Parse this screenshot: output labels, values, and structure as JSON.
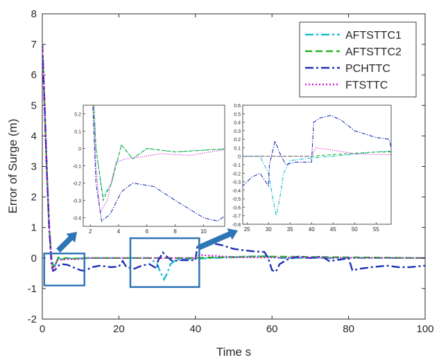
{
  "chart_data": {
    "type": "line",
    "xlabel": "Time s",
    "ylabel": "Error of Surge (m)",
    "xlim": [
      0,
      100
    ],
    "ylim": [
      -2,
      8
    ],
    "xticks": [
      "0",
      "20",
      "40",
      "60",
      "80",
      "100"
    ],
    "yticks": [
      "-2",
      "-1",
      "0",
      "1",
      "2",
      "3",
      "4",
      "5",
      "6",
      "7",
      "8"
    ],
    "legend_position": "top-right",
    "series": [
      {
        "name": "AFTSTTC1",
        "color": "#17becf",
        "dash": "dashdot",
        "x": [
          0,
          0.6,
          1.2,
          1.8,
          2.4,
          2.9,
          3.5,
          4.2,
          5,
          6,
          8,
          12,
          20,
          25,
          28,
          30,
          31,
          31.8,
          32.6,
          33.5,
          35,
          40,
          45,
          55,
          58,
          62,
          70,
          100
        ],
        "y": [
          7.0,
          5.0,
          2.8,
          1.0,
          0.0,
          -0.28,
          -0.2,
          0.02,
          -0.06,
          0.0,
          -0.02,
          0.0,
          0.0,
          0.0,
          0.0,
          -0.2,
          -0.5,
          -0.7,
          -0.5,
          -0.2,
          -0.05,
          -0.02,
          0.0,
          0.05,
          0.06,
          0.0,
          0.0,
          0.0
        ]
      },
      {
        "name": "AFTSTTC2",
        "color": "#22b322",
        "dash": "dashed",
        "x": [
          0,
          0.6,
          1.2,
          1.8,
          2.4,
          2.9,
          3.5,
          4.2,
          5,
          6,
          8,
          12,
          20,
          40,
          45,
          55,
          58,
          100
        ],
        "y": [
          7.0,
          5.0,
          2.8,
          1.0,
          0.0,
          -0.3,
          -0.2,
          0.02,
          -0.06,
          0.0,
          -0.02,
          0.0,
          0.0,
          0.0,
          0.02,
          0.05,
          0.05,
          0.0
        ]
      },
      {
        "name": "PCHTTC",
        "color": "#1c2fb5",
        "dash": "dashdot",
        "x": [
          0,
          0.6,
          1.2,
          1.8,
          2.4,
          2.8,
          3.4,
          4.2,
          5,
          6.5,
          8,
          10,
          11,
          13,
          15,
          18,
          20,
          21,
          22,
          24,
          26,
          28,
          30,
          30.2,
          31.5,
          32.5,
          34,
          36,
          40,
          40.5,
          42,
          44.5,
          47,
          50,
          55,
          58,
          59,
          60,
          61,
          62,
          64,
          67,
          70,
          73,
          75,
          78,
          80,
          81,
          83,
          86,
          90,
          93,
          96,
          100
        ],
        "y": [
          7.0,
          5.0,
          2.8,
          1.0,
          -0.2,
          -0.42,
          -0.38,
          -0.25,
          -0.2,
          -0.22,
          -0.3,
          -0.4,
          -0.42,
          -0.3,
          -0.25,
          -0.3,
          -0.28,
          -0.1,
          -0.3,
          -0.35,
          -0.25,
          -0.2,
          -0.35,
          -0.1,
          0.18,
          0.05,
          -0.1,
          -0.07,
          -0.07,
          0.4,
          0.45,
          0.48,
          0.42,
          0.3,
          0.22,
          0.2,
          0.0,
          -0.4,
          -0.45,
          -0.2,
          -0.05,
          0.05,
          0.0,
          0.05,
          -0.1,
          -0.05,
          0.0,
          -0.4,
          -0.35,
          -0.3,
          -0.25,
          -0.3,
          -0.3,
          -0.25
        ]
      },
      {
        "name": "FTSTTC",
        "color": "#d21ad2",
        "dash": "dotted",
        "x": [
          0,
          0.6,
          1.2,
          1.8,
          2.4,
          2.7,
          3.2,
          3.8,
          4.5,
          5.5,
          7,
          9,
          12,
          20,
          40,
          41,
          45,
          50,
          55,
          58,
          100
        ],
        "y": [
          7.0,
          5.0,
          2.8,
          1.0,
          -0.1,
          -0.37,
          -0.3,
          -0.08,
          -0.06,
          -0.05,
          -0.03,
          -0.04,
          0.0,
          0.0,
          0.0,
          0.1,
          0.07,
          0.03,
          0.02,
          0.02,
          0.0
        ]
      }
    ],
    "insets": [
      {
        "xlim": [
          1.5,
          11.5
        ],
        "ylim": [
          -0.45,
          0.25
        ],
        "xticks": [
          "2",
          "4",
          "6",
          "8",
          "10"
        ],
        "yticks": [
          "0.2",
          "0.1",
          "0",
          "-0.1",
          "-0.2",
          "-0.3",
          "-0.4"
        ],
        "zoom_region": {
          "xlim": [
            0.5,
            11
          ],
          "ylim": [
            -0.9,
            0.15
          ]
        }
      },
      {
        "xlim": [
          24,
          58.5
        ],
        "ylim": [
          -0.8,
          0.6
        ],
        "xticks": [
          "25",
          "30",
          "35",
          "40",
          "45",
          "50",
          "55"
        ],
        "yticks": [
          "0.6",
          "0.5",
          "0.4",
          "0.3",
          "0.2",
          "0.1",
          "0",
          "-0.1",
          "-0.2",
          "-0.3",
          "-0.4",
          "-0.5",
          "-0.6",
          "-0.7",
          "-0.8"
        ],
        "zoom_region": {
          "xlim": [
            23,
            41
          ],
          "ylim": [
            -0.95,
            0.65
          ]
        }
      }
    ]
  },
  "accent_box_color": "#2e75b6"
}
